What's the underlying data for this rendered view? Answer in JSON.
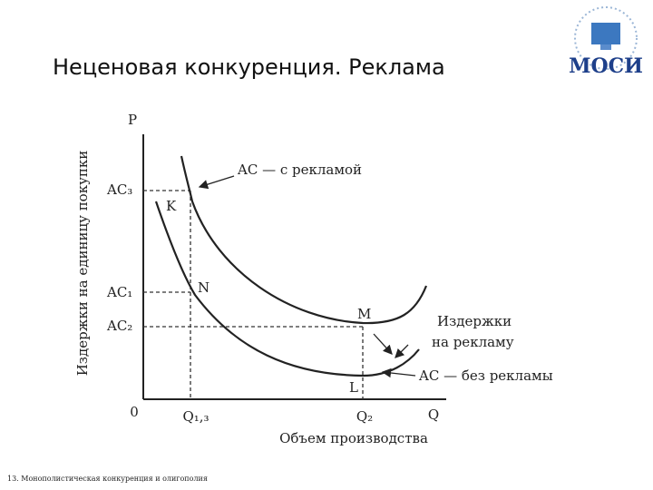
{
  "header": {
    "title": "Неценовая конкуренция. Реклама",
    "logo": "МОСИ"
  },
  "diagram": {
    "y_axis_title": "Издержки на единицу покупки",
    "y_axis_label": "P",
    "x_axis_label": "Q",
    "x_axis_title": "Объем производства",
    "origin": "0",
    "y_levels": [
      "AC₃",
      "AC₁",
      "AC₂"
    ],
    "x_levels": [
      "Q₁,₃",
      "Q₂"
    ],
    "points": [
      "K",
      "N",
      "M",
      "L"
    ],
    "annotations": [
      "AC — с рекламой",
      "Издержки",
      "на рекламу",
      "AC — без рекламы"
    ]
  },
  "footer": {
    "text": "13. Монополистическая конкуренция и олигополия"
  }
}
